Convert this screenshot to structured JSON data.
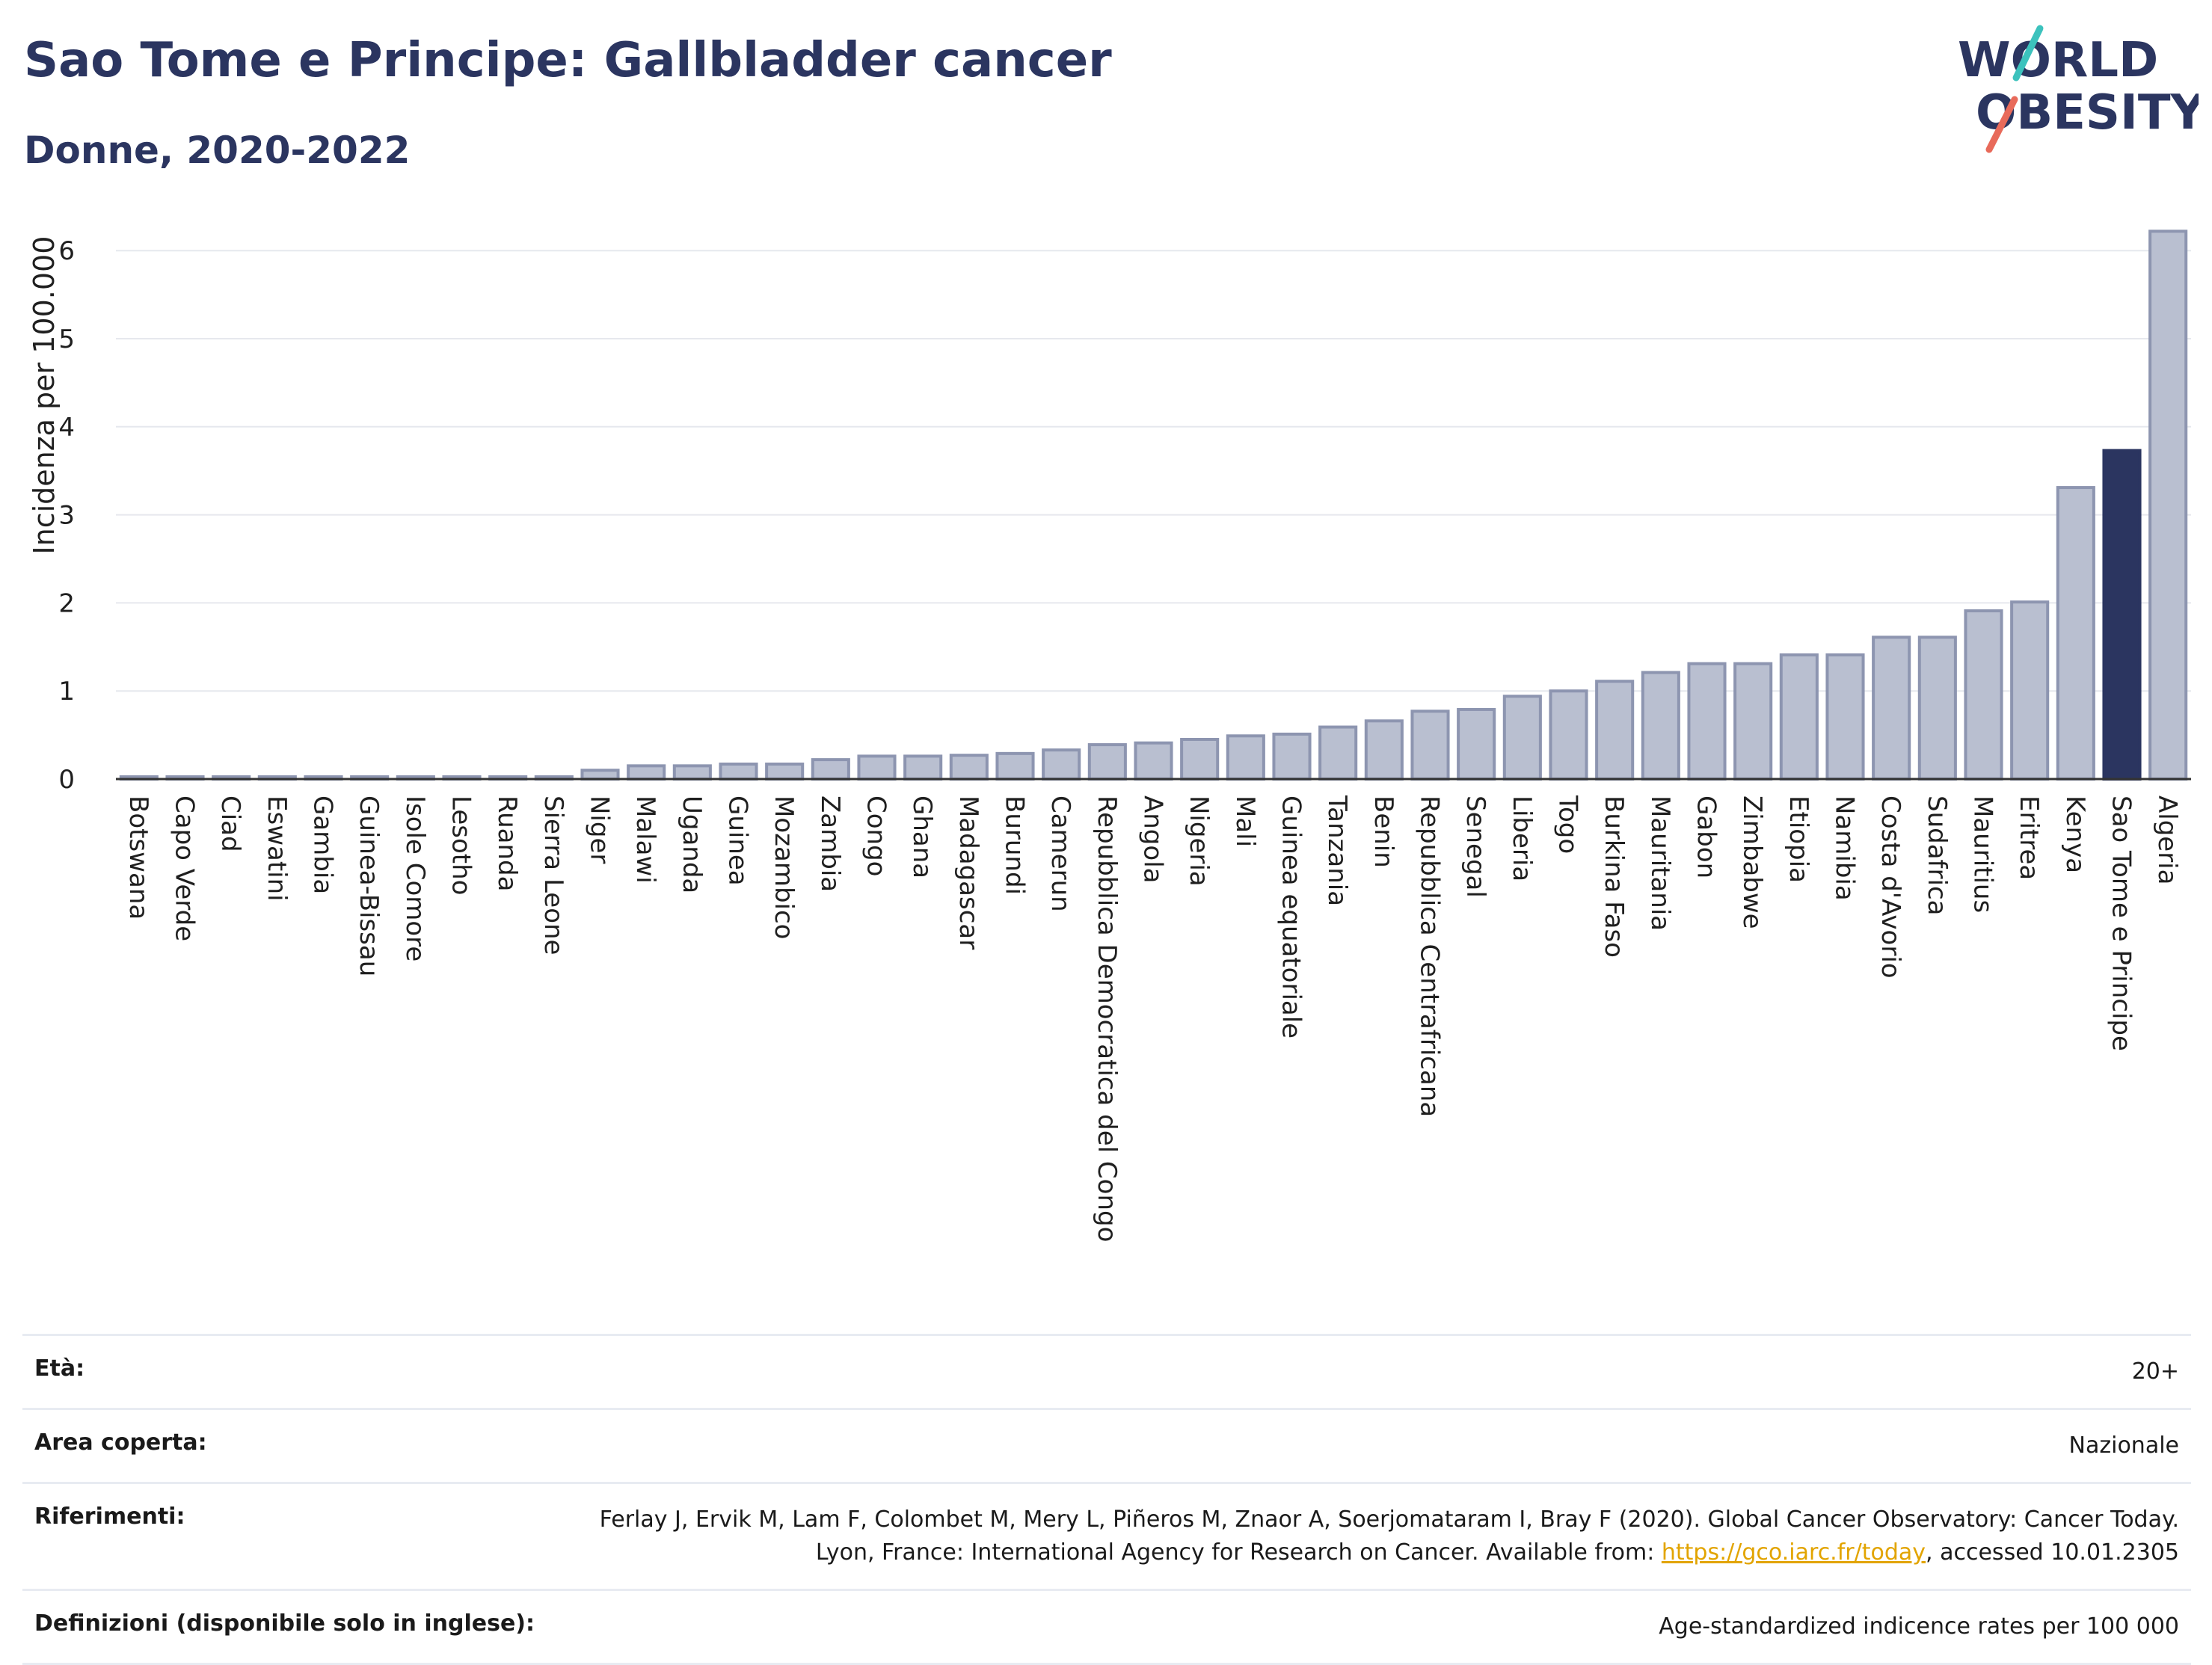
{
  "header": {
    "title": "Sao Tome e Principe: Gallbladder cancer",
    "subtitle": "Donne, 2020-2022"
  },
  "logo": {
    "line1": "WORLD",
    "line2": "OBESITY"
  },
  "colors": {
    "highlight": "#2b3560",
    "bar": "#b9bfd0",
    "bar_stroke": "#8d95b0",
    "grid": "#e6e8ee",
    "title": "#2b3560",
    "link": "#e2a400"
  },
  "chart_data": {
    "type": "bar",
    "ylabel": "Incidenza per 100.000",
    "ylim": [
      0,
      6.5
    ],
    "yticks": [
      0,
      1,
      2,
      3,
      4,
      5,
      6
    ],
    "grid": true,
    "highlight": "Sao Tome e Principe",
    "categories": [
      "Botswana",
      "Capo Verde",
      "Ciad",
      "Eswatini",
      "Gambia",
      "Guinea-Bissau",
      "Isole Comore",
      "Lesotho",
      "Ruanda",
      "Sierra Leone",
      "Niger",
      "Malawi",
      "Uganda",
      "Guinea",
      "Mozambico",
      "Zambia",
      "Congo",
      "Ghana",
      "Madagascar",
      "Burundi",
      "Camerun",
      "Repubblica Democratica del Congo",
      "Angola",
      "Nigeria",
      "Mali",
      "Guinea equatoriale",
      "Tanzania",
      "Benin",
      "Repubblica Centrafricana",
      "Senegal",
      "Liberia",
      "Togo",
      "Burkina Faso",
      "Mauritania",
      "Gabon",
      "Zimbabwe",
      "Etiopia",
      "Namibia",
      "Costa d'Avorio",
      "Sudafrica",
      "Mauritius",
      "Eritrea",
      "Kenya",
      "Sao Tome e Principe",
      "Algeria"
    ],
    "values": [
      0.02,
      0.02,
      0.02,
      0.02,
      0.02,
      0.02,
      0.02,
      0.02,
      0.02,
      0.02,
      0.1,
      0.15,
      0.15,
      0.17,
      0.17,
      0.22,
      0.26,
      0.26,
      0.27,
      0.29,
      0.33,
      0.39,
      0.41,
      0.45,
      0.49,
      0.51,
      0.59,
      0.66,
      0.77,
      0.79,
      0.94,
      1.0,
      1.11,
      1.21,
      1.31,
      1.31,
      1.41,
      1.41,
      1.61,
      1.61,
      1.91,
      2.01,
      3.31,
      3.73,
      6.22
    ]
  },
  "info": {
    "rows": [
      {
        "key": "Età:",
        "value": "20+"
      },
      {
        "key": "Area coperta:",
        "value": "Nazionale"
      },
      {
        "key": "Riferimenti:",
        "value": "Ferlay J, Ervik M, Lam F, Colombet M, Mery L, Piñeros M, Znaor A, Soerjomataram I, Bray F (2020). Global Cancer Observatory: Cancer Today. Lyon, France: International Agency for Research on Cancer. Available from: ",
        "link": "https://gco.iarc.fr/today",
        "suffix": ", accessed 10.01.2305"
      },
      {
        "key": "Definizioni (disponibile solo in inglese):",
        "value": "Age-standardized indicence rates per 100 000"
      }
    ]
  }
}
